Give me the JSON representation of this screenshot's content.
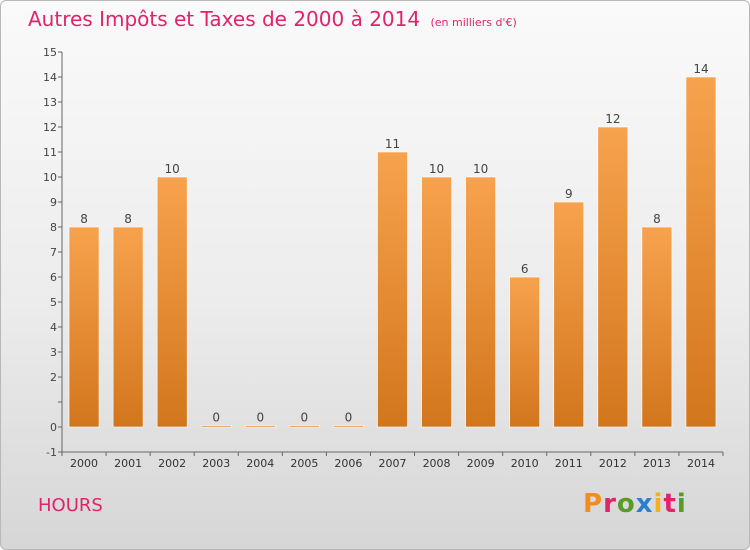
{
  "header": {
    "title": "Autres Impôts et Taxes de 2000 à 2014",
    "unit": "(en milliers d'€)"
  },
  "footer": {
    "commune": "HOURS",
    "logo_text": "Proxiti",
    "logo_colors": [
      "#f28c1e",
      "#e0236b",
      "#5a9a2a",
      "#2a7fd0",
      "#f2b21e",
      "#e0236b",
      "#5a9a2a"
    ]
  },
  "colors": {
    "accent": "#e0236b",
    "bar_light": "#f7a24e",
    "bar_dark": "#d2761c",
    "axis": "#666666"
  },
  "chart_data": {
    "type": "bar",
    "title": "Autres Impôts et Taxes de 2000 à 2014",
    "subtitle": "(en milliers d'€)",
    "categories": [
      "2000",
      "2001",
      "2002",
      "2003",
      "2004",
      "2005",
      "2006",
      "2007",
      "2008",
      "2009",
      "2010",
      "2011",
      "2012",
      "2013",
      "2014"
    ],
    "values": [
      8,
      8,
      10,
      0,
      0,
      0,
      0,
      11,
      10,
      10,
      6,
      9,
      12,
      8,
      14
    ],
    "ylim": [
      -1,
      15
    ],
    "yticks": [
      -1,
      0,
      1,
      2,
      3,
      4,
      5,
      6,
      7,
      8,
      9,
      10,
      11,
      12,
      13,
      14,
      15
    ],
    "ytick_labels": [
      "-1",
      "0",
      "",
      "2",
      "3",
      "4",
      "5",
      "6",
      "7",
      "8",
      "9",
      "10",
      "11",
      "12",
      "13",
      "14",
      "15"
    ],
    "grid": false,
    "legend": "none",
    "data_labels": true
  }
}
